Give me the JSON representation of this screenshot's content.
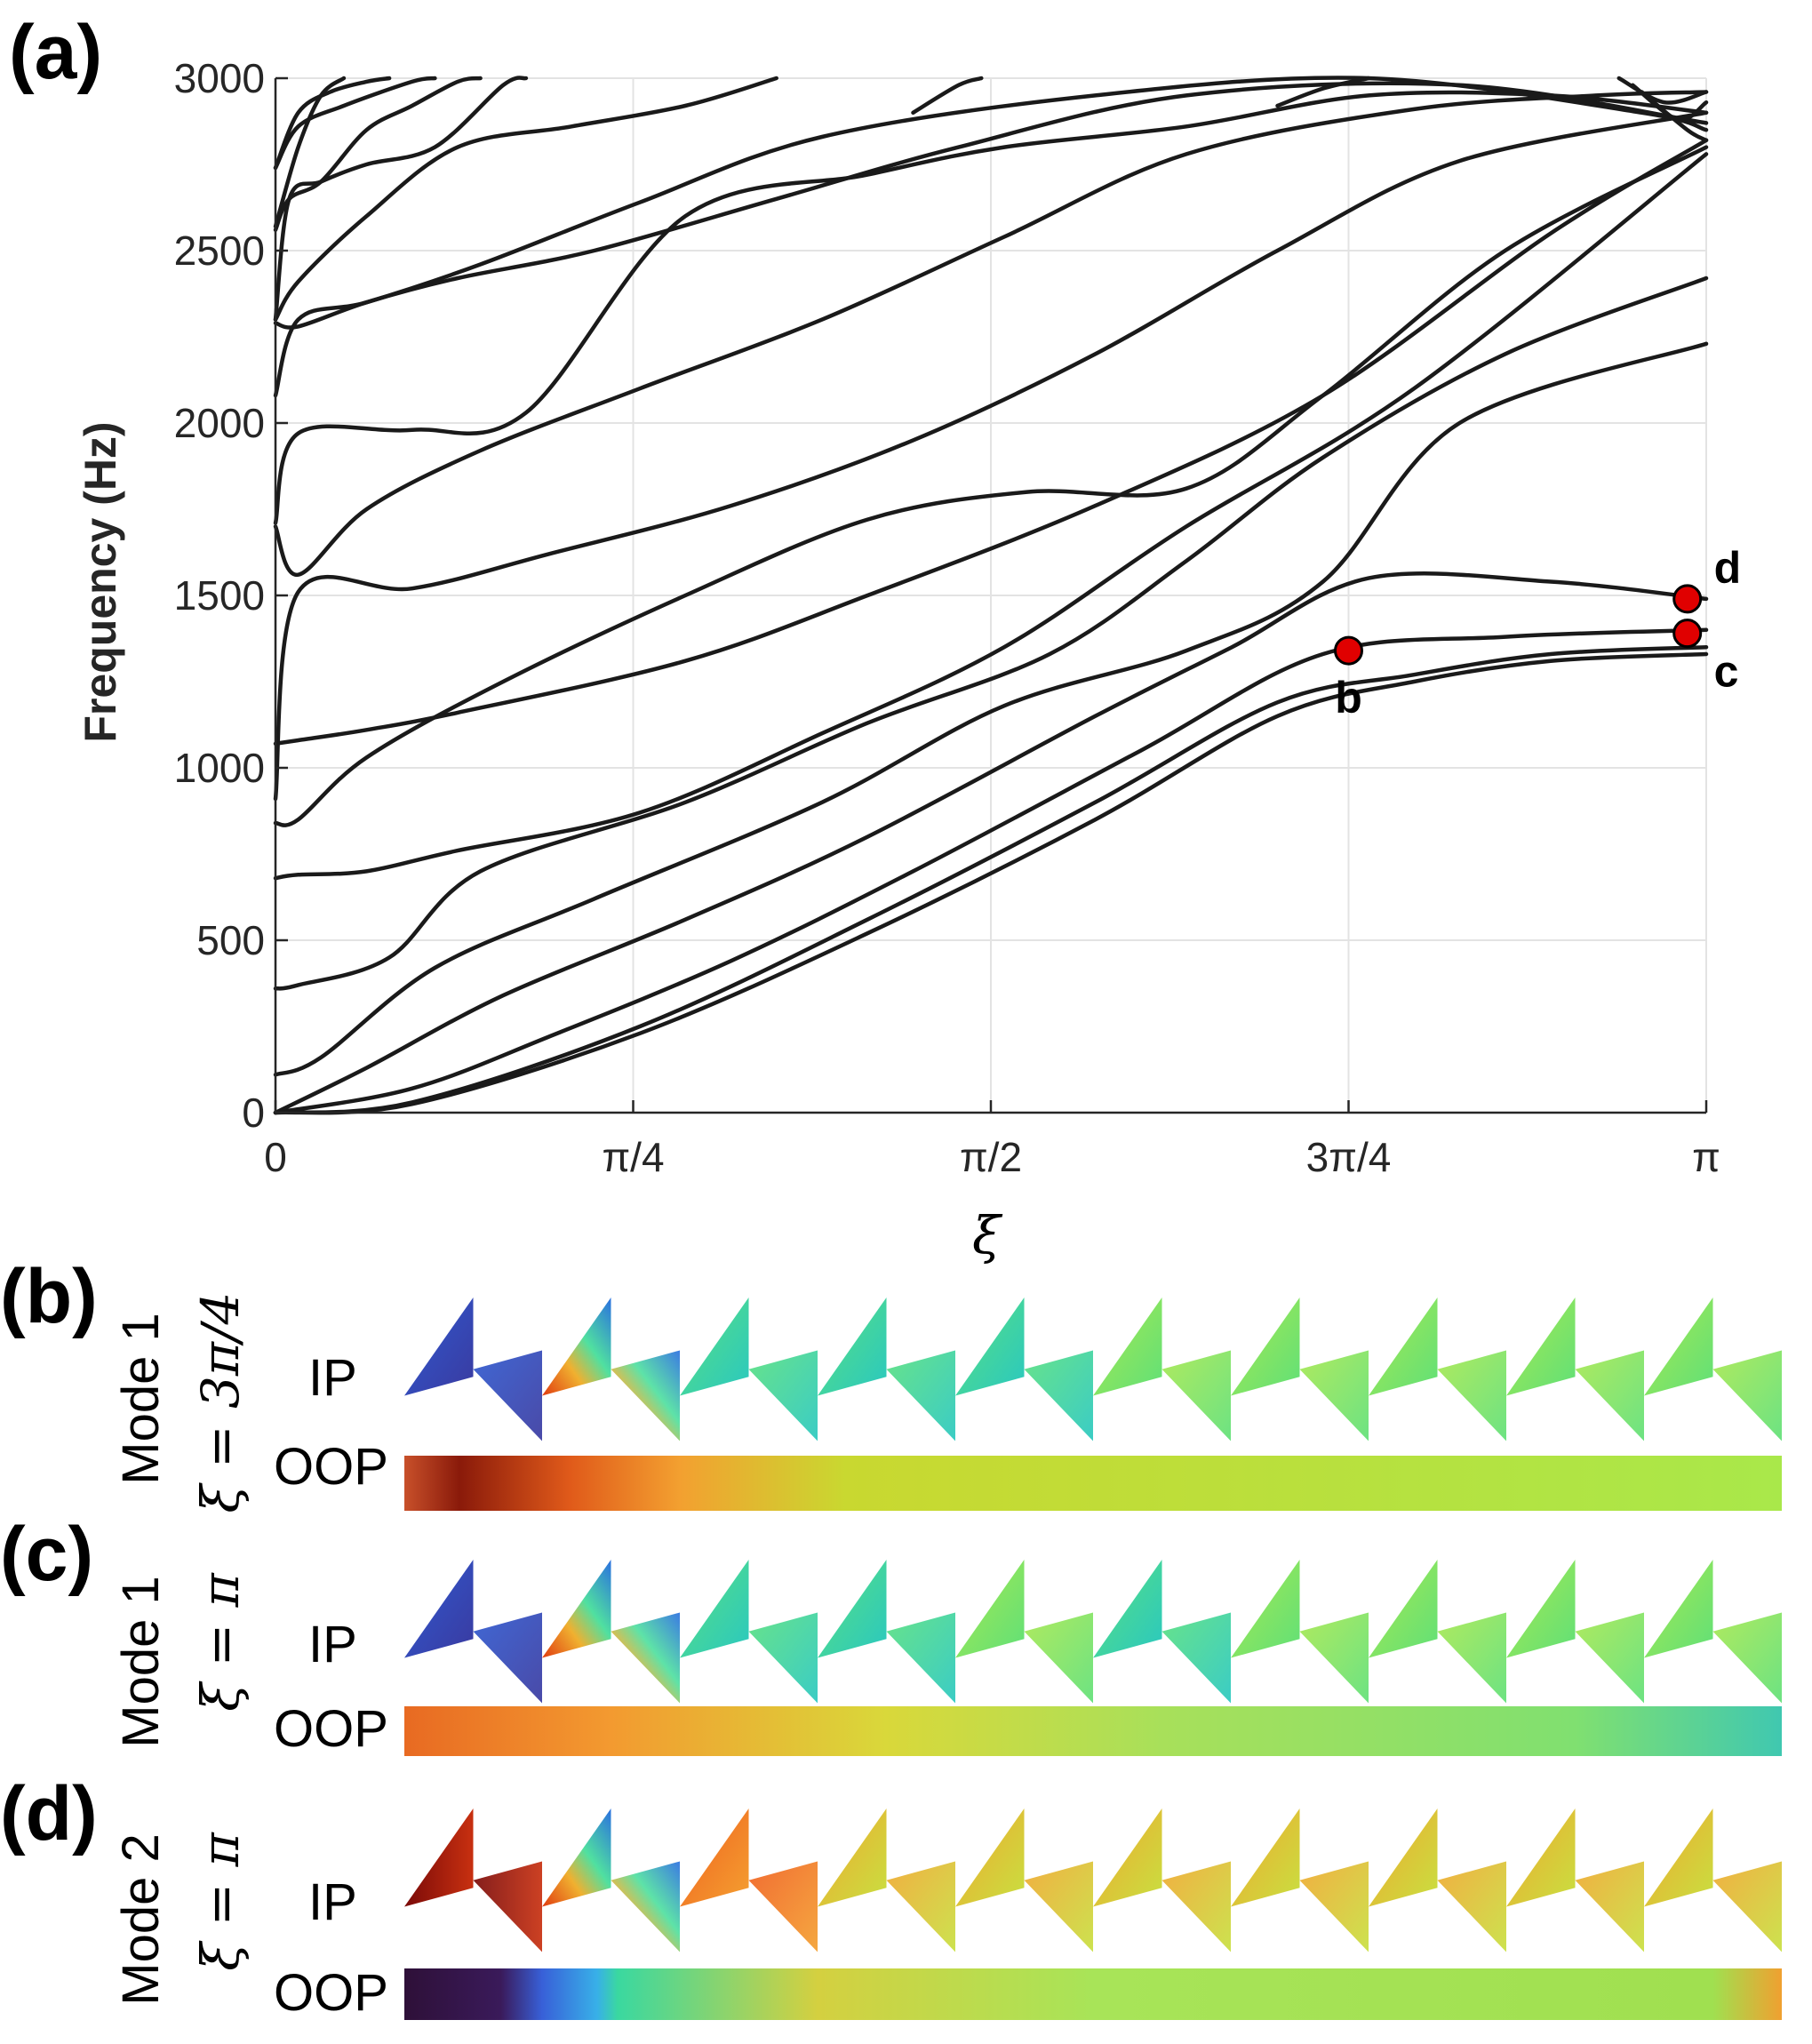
{
  "panels": {
    "a": "(a)",
    "b": "(b)",
    "c": "(c)",
    "d": "(d)"
  },
  "chart_data": {
    "type": "line",
    "title": "",
    "xlabel": "ξ",
    "ylabel": "Frequency (Hz)",
    "xlim": [
      0,
      3.14159
    ],
    "ylim": [
      0,
      3000
    ],
    "xticks": [
      {
        "value": 0,
        "label": "0"
      },
      {
        "value": 0.7854,
        "label": "π/4"
      },
      {
        "value": 1.5708,
        "label": "π/2"
      },
      {
        "value": 2.3562,
        "label": "3π/4"
      },
      {
        "value": 3.14159,
        "label": "π"
      }
    ],
    "yticks": [
      {
        "value": 0,
        "label": "0"
      },
      {
        "value": 500,
        "label": "500"
      },
      {
        "value": 1000,
        "label": "1000"
      },
      {
        "value": 1500,
        "label": "1500"
      },
      {
        "value": 2000,
        "label": "2000"
      },
      {
        "value": 2500,
        "label": "2500"
      },
      {
        "value": 3000,
        "label": "3000"
      }
    ],
    "grid": true,
    "line_color": "#1a1a1a",
    "marker_color": "#e00000",
    "series": [
      {
        "x": [
          0,
          0.3,
          0.8,
          1.3,
          1.8,
          2.2,
          2.5,
          2.8,
          3.14159
        ],
        "y": [
          0,
          25,
          230,
          520,
          850,
          1150,
          1250,
          1310,
          1330
        ]
      },
      {
        "x": [
          0,
          0.3,
          0.8,
          1.3,
          1.8,
          2.2,
          2.5,
          2.8,
          3.14159
        ],
        "y": [
          0,
          30,
          250,
          560,
          900,
          1190,
          1270,
          1330,
          1350
        ]
      },
      {
        "x": [
          0,
          0.3,
          0.6,
          1.0,
          1.4,
          1.9,
          2.3,
          2.7,
          3.14159
        ],
        "y": [
          0,
          70,
          220,
          440,
          700,
          1050,
          1330,
          1380,
          1400
        ]
      },
      {
        "x": [
          0,
          0.2,
          0.5,
          0.9,
          1.3,
          1.8,
          2.1,
          2.4,
          2.8,
          3.14159
        ],
        "y": [
          0,
          130,
          340,
          560,
          800,
          1150,
          1350,
          1550,
          1540,
          1490
        ]
      },
      {
        "x": [
          0,
          0.1,
          0.35,
          0.7,
          1.2,
          1.6,
          2.0,
          2.3,
          2.6,
          3.14159
        ],
        "y": [
          110,
          160,
          420,
          620,
          900,
          1180,
          1340,
          1540,
          2000,
          2230
        ]
      },
      {
        "x": [
          0,
          0.05,
          0.25,
          0.45,
          0.9,
          1.3,
          1.7,
          2.0,
          2.3,
          2.7,
          3.14159
        ],
        "y": [
          360,
          370,
          450,
          700,
          900,
          1130,
          1330,
          1600,
          1900,
          2200,
          2420
        ]
      },
      {
        "x": [
          0,
          0.05,
          0.2,
          0.4,
          0.8,
          1.2,
          1.6,
          2.0,
          2.5,
          3.14159
        ],
        "y": [
          680,
          690,
          700,
          760,
          870,
          1100,
          1350,
          1700,
          2100,
          2780
        ]
      },
      {
        "x": [
          0,
          0.05,
          0.2,
          0.5,
          0.9,
          1.3,
          1.65,
          2.0,
          2.3,
          2.7,
          3.14159
        ],
        "y": [
          840,
          850,
          1030,
          1250,
          1500,
          1720,
          1800,
          1810,
          2080,
          2500,
          2800
        ]
      },
      {
        "x": [
          0,
          0.05,
          0.2,
          0.4,
          0.9,
          1.3,
          1.8,
          2.3,
          2.8,
          3.14159
        ],
        "y": [
          1070,
          1080,
          1110,
          1160,
          1310,
          1500,
          1760,
          2080,
          2550,
          2820
        ]
      },
      {
        "x": [
          0,
          0.05,
          0.3,
          0.6,
          1.0,
          1.4,
          1.8,
          2.2,
          2.6,
          3.14159
        ],
        "y": [
          910,
          1510,
          1520,
          1620,
          1760,
          1950,
          2200,
          2500,
          2760,
          2900
        ]
      },
      {
        "x": [
          0,
          0.05,
          0.2,
          0.45,
          0.8,
          1.2,
          1.6,
          2.0,
          2.5,
          2.9,
          3.14159
        ],
        "y": [
          1700,
          1560,
          1750,
          1920,
          2100,
          2300,
          2540,
          2780,
          2910,
          2950,
          2960
        ]
      },
      {
        "x": [
          0,
          0.05,
          0.3,
          0.55,
          0.9,
          1.3,
          1.6,
          2.0,
          2.4,
          2.8,
          3.14159
        ],
        "y": [
          1710,
          1970,
          1980,
          2030,
          2600,
          2720,
          2800,
          2860,
          2950,
          2950,
          2900
        ]
      },
      {
        "x": [
          0,
          0.05,
          0.2,
          0.45,
          0.8,
          1.2,
          1.8,
          2.4,
          3.0,
          3.14159
        ],
        "y": [
          2080,
          2300,
          2350,
          2460,
          2640,
          2830,
          2950,
          3000,
          2900,
          2850
        ]
      },
      {
        "x": [
          0,
          0.05,
          0.2,
          0.4,
          0.7,
          1.1,
          1.5,
          2.0,
          2.6,
          3.14159
        ],
        "y": [
          2290,
          2280,
          2350,
          2420,
          2500,
          2650,
          2800,
          2950,
          2980,
          2870
        ]
      },
      {
        "x": [
          0,
          0.05,
          0.2,
          0.4,
          0.65,
          0.9,
          1.1
        ],
        "y": [
          2300,
          2410,
          2600,
          2800,
          2860,
          2920,
          3000
        ]
      },
      {
        "x": [
          0,
          0.03,
          0.1,
          0.2,
          0.35,
          0.5,
          0.55
        ],
        "y": [
          2300,
          2650,
          2700,
          2750,
          2800,
          2980,
          3000
        ]
      },
      {
        "x": [
          0,
          0.03,
          0.1,
          0.2,
          0.3,
          0.4,
          0.45
        ],
        "y": [
          2560,
          2650,
          2700,
          2850,
          2920,
          2990,
          3000
        ]
      },
      {
        "x": [
          0,
          0.05,
          0.15,
          0.3,
          0.35
        ],
        "y": [
          2740,
          2860,
          2920,
          2990,
          3000
        ]
      },
      {
        "x": [
          0,
          0.05,
          0.12,
          0.2,
          0.25
        ],
        "y": [
          2740,
          2900,
          2960,
          2990,
          3000
        ]
      },
      {
        "x": [
          0,
          0.05,
          0.1,
          0.15
        ],
        "y": [
          2570,
          2800,
          2950,
          3000
        ]
      },
      {
        "x": [
          1.4,
          1.5,
          1.55
        ],
        "y": [
          2900,
          2980,
          3000
        ]
      },
      {
        "x": [
          2.2,
          2.3,
          2.4
        ],
        "y": [
          2920,
          2970,
          3000
        ]
      },
      {
        "x": [
          2.95,
          3.05,
          3.14159
        ],
        "y": [
          3000,
          2930,
          2960
        ]
      },
      {
        "x": [
          2.98,
          3.08,
          3.14159
        ],
        "y": [
          2980,
          2880,
          2930
        ]
      },
      {
        "x": [
          3.0,
          3.1,
          3.14159
        ],
        "y": [
          2960,
          2850,
          2820
        ]
      }
    ],
    "points": [
      {
        "label": "b",
        "x": 2.3562,
        "y": 1340,
        "label_pos": "below"
      },
      {
        "label": "c",
        "x": 3.1,
        "y": 1390,
        "label_pos": "below-right"
      },
      {
        "label": "d",
        "x": 3.1,
        "y": 1490,
        "label_pos": "above-right"
      }
    ]
  },
  "mode_rows": [
    {
      "panel": "b",
      "mode": "Mode 1",
      "xi": "ξ = 3π/4",
      "ip": "IP",
      "oop": "OOP"
    },
    {
      "panel": "c",
      "mode": "Mode 1",
      "xi": "ξ = π",
      "ip": "IP",
      "oop": "OOP"
    },
    {
      "panel": "d",
      "mode": "Mode 2",
      "xi": "ξ = π",
      "ip": "IP",
      "oop": "OOP"
    }
  ]
}
